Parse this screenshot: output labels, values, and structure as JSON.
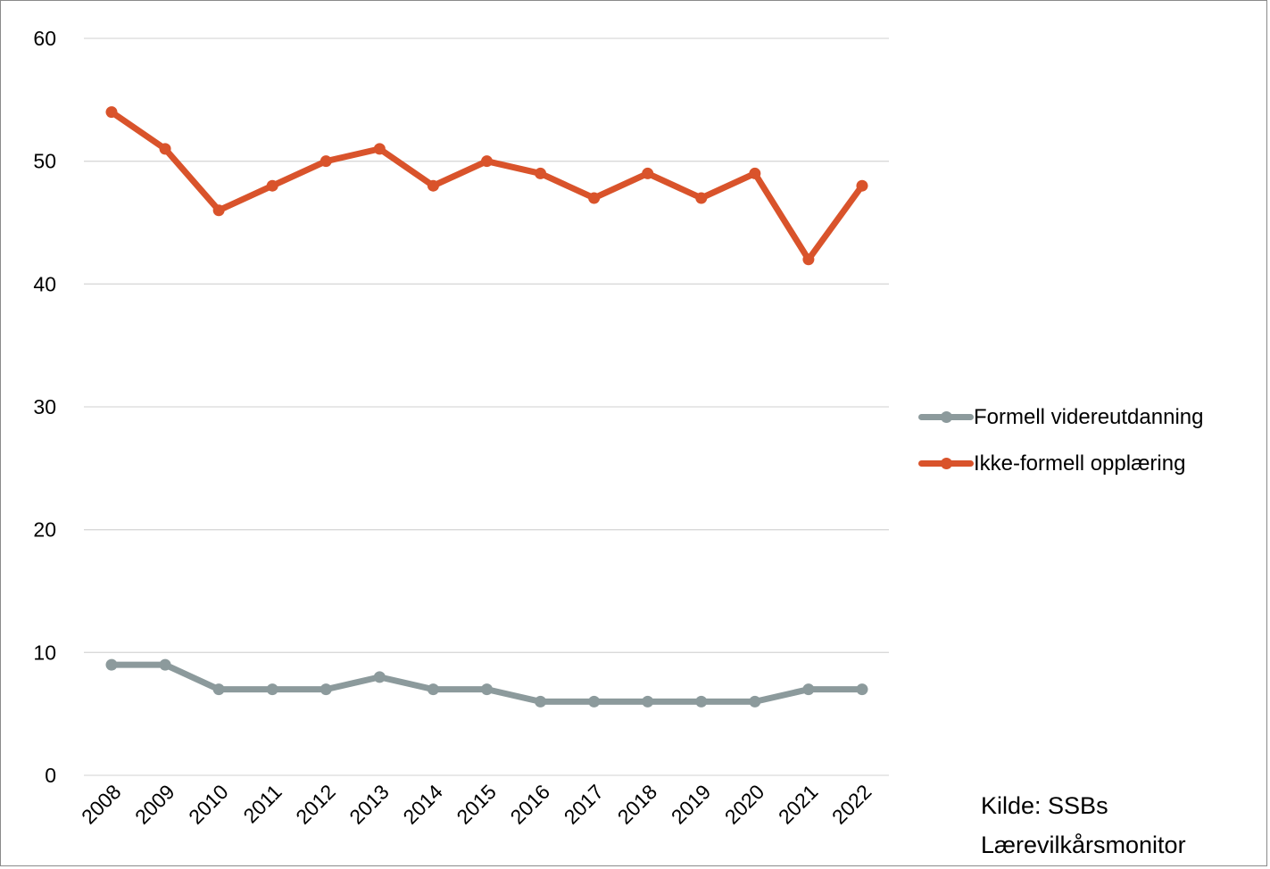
{
  "chart_data": {
    "type": "line",
    "categories": [
      "2008",
      "2009",
      "2010",
      "2011",
      "2012",
      "2013",
      "2014",
      "2015",
      "2016",
      "2017",
      "2018",
      "2019",
      "2020",
      "2021",
      "2022"
    ],
    "series": [
      {
        "name": "Formell videreutdanning",
        "color": "#8c9a9c",
        "values": [
          9,
          9,
          7,
          7,
          7,
          8,
          7,
          7,
          6,
          6,
          6,
          6,
          6,
          7,
          7
        ]
      },
      {
        "name": "Ikke-formell opplæring",
        "color": "#d9532b",
        "values": [
          54,
          51,
          46,
          48,
          50,
          51,
          48,
          50,
          49,
          47,
          49,
          47,
          49,
          42,
          48
        ]
      }
    ],
    "ylim": [
      0,
      60
    ],
    "yticks": [
      0,
      10,
      20,
      30,
      40,
      50,
      60
    ],
    "grid": true,
    "legend": "right",
    "gridline_color": "#d9d9d9"
  },
  "source": {
    "line1": "Kilde: SSBs",
    "line2": "Lærevilkårsmonitor"
  }
}
